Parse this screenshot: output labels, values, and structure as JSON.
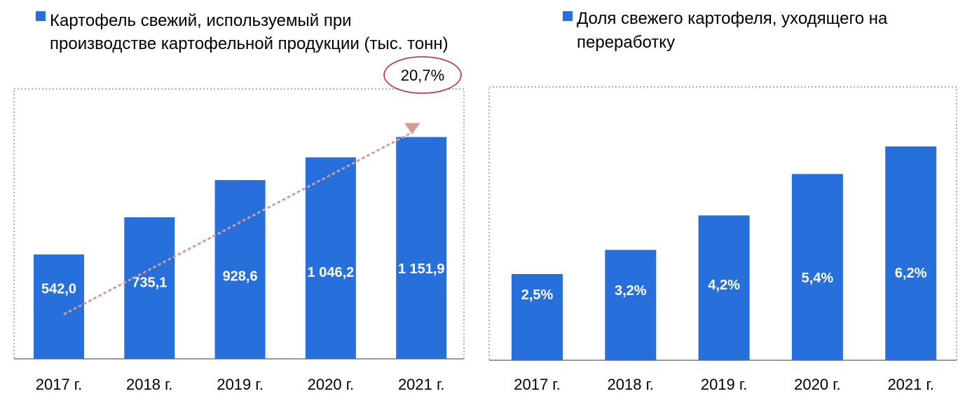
{
  "colors": {
    "bar": "#2770DC",
    "trend_arrow": "#D49A94",
    "cagr_ellipse": "#C0202A",
    "frame": "#7F7F7F",
    "value_label": "#FFFFFF"
  },
  "chart_data": [
    {
      "type": "bar",
      "title_lines": [
        "Картофель свежий, используемый при",
        "производстве картофельной продукции (тыс. тонн)"
      ],
      "categories": [
        "2017 г.",
        "2018 г.",
        "2019 г.",
        "2020 г.",
        "2021 г."
      ],
      "values": [
        542.0,
        735.1,
        928.6,
        1046.2,
        1151.9
      ],
      "value_labels": [
        "542,0",
        "735,1",
        "928,6",
        "1 046,2",
        "1 151,9"
      ],
      "ylim": [
        0,
        1150
      ],
      "legend": "top-left",
      "grid": false,
      "annotation": {
        "label": "20,7%",
        "shape": "ellipse",
        "trend_arrow": {
          "from_category": "2017 г.",
          "to_category": "2021 г."
        }
      }
    },
    {
      "type": "bar",
      "title_lines": [
        "Доля свежего картофеля, уходящего на",
        "переработку"
      ],
      "categories": [
        "2017 г.",
        "2018 г.",
        "2019 г.",
        "2020 г.",
        "2021 г."
      ],
      "values": [
        2.5,
        3.2,
        4.2,
        5.4,
        6.2
      ],
      "value_labels": [
        "2,5%",
        "3,2%",
        "4,2%",
        "5,4%",
        "6,2%"
      ],
      "ylim": [
        0,
        6.95
      ],
      "legend": "top-left",
      "grid": false
    }
  ]
}
